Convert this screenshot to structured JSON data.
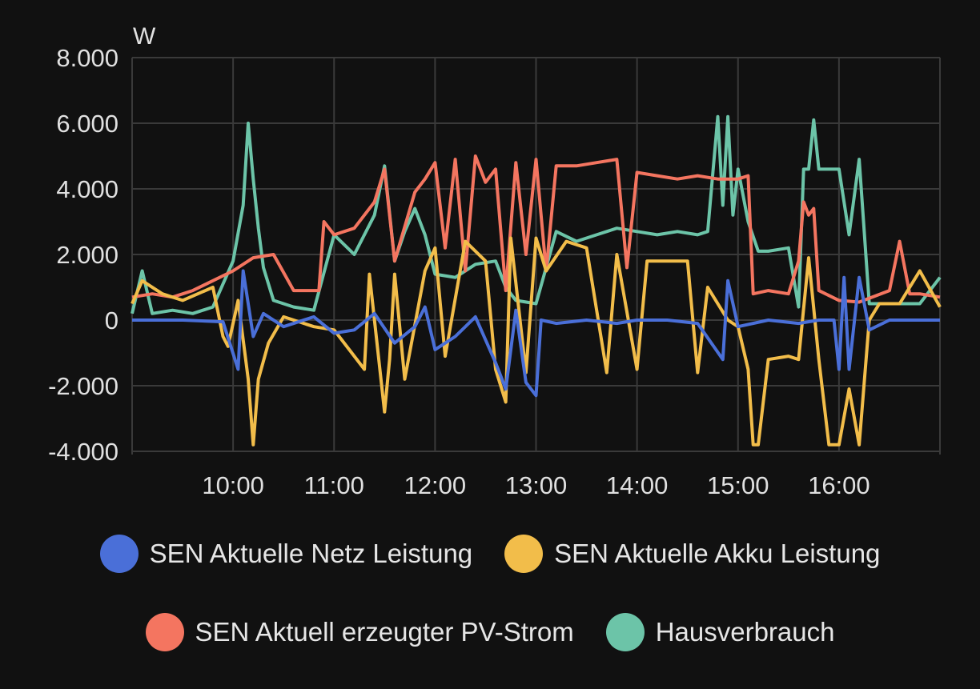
{
  "colors": {
    "background": "#111111",
    "grid": "#3a3a3a",
    "netz": "#4a6fd8",
    "akku": "#f2bd4a",
    "pv": "#f47560",
    "haus": "#6cc4a8"
  },
  "chart_data": {
    "type": "line",
    "title": "",
    "unit": "W",
    "xlabel": "",
    "ylabel": "W",
    "xlim": [
      9.0,
      17.0
    ],
    "ylim": [
      -4000,
      8000
    ],
    "x_ticks": [
      10,
      11,
      12,
      13,
      14,
      15,
      16
    ],
    "x_tick_labels": [
      "10:00",
      "11:00",
      "12:00",
      "13:00",
      "14:00",
      "15:00",
      "16:00"
    ],
    "y_ticks": [
      -4000,
      -2000,
      0,
      2000,
      4000,
      6000,
      8000
    ],
    "y_tick_labels": [
      "-4.000",
      "-2.000",
      "0",
      "2.000",
      "4.000",
      "6.000",
      "8.000"
    ],
    "grid": true,
    "legend_position": "bottom",
    "series": [
      {
        "name": "SEN Aktuelle Netz Leistung",
        "color": "#4a6fd8",
        "x": [
          9.0,
          9.5,
          9.9,
          10.05,
          10.1,
          10.2,
          10.3,
          10.5,
          10.8,
          11.0,
          11.2,
          11.4,
          11.6,
          11.8,
          11.9,
          12.0,
          12.2,
          12.4,
          12.6,
          12.7,
          12.8,
          12.9,
          13.0,
          13.05,
          13.2,
          13.5,
          13.8,
          14.0,
          14.3,
          14.6,
          14.85,
          14.9,
          15.0,
          15.3,
          15.6,
          15.8,
          15.95,
          16.0,
          16.05,
          16.1,
          16.2,
          16.3,
          16.5,
          16.8,
          17.0
        ],
        "y": [
          0,
          0,
          -50,
          -1500,
          1500,
          -500,
          200,
          -200,
          100,
          -400,
          -300,
          200,
          -700,
          -200,
          400,
          -900,
          -500,
          100,
          -1300,
          -2100,
          300,
          -1900,
          -2300,
          0,
          -100,
          0,
          -100,
          0,
          0,
          -100,
          -1200,
          1200,
          -200,
          0,
          -100,
          0,
          0,
          -1500,
          1300,
          -1500,
          1300,
          -300,
          0,
          0,
          0
        ]
      },
      {
        "name": "SEN Aktuelle Akku Leistung",
        "color": "#f2bd4a",
        "x": [
          9.0,
          9.1,
          9.3,
          9.5,
          9.8,
          9.9,
          9.95,
          10.05,
          10.15,
          10.2,
          10.25,
          10.35,
          10.5,
          10.8,
          11.0,
          11.3,
          11.35,
          11.5,
          11.55,
          11.6,
          11.7,
          11.9,
          12.0,
          12.1,
          12.3,
          12.5,
          12.6,
          12.7,
          12.75,
          12.9,
          13.0,
          13.1,
          13.3,
          13.5,
          13.7,
          13.8,
          14.0,
          14.1,
          14.2,
          14.5,
          14.6,
          14.7,
          14.9,
          15.0,
          15.1,
          15.15,
          15.2,
          15.3,
          15.5,
          15.6,
          15.7,
          15.8,
          15.9,
          16.0,
          16.1,
          16.2,
          16.3,
          16.4,
          16.6,
          16.8,
          17.0
        ],
        "y": [
          500,
          1200,
          800,
          600,
          1000,
          -500,
          -800,
          600,
          -1800,
          -3800,
          -1800,
          -700,
          100,
          -200,
          -300,
          -1500,
          1400,
          -2800,
          -1200,
          1400,
          -1800,
          1500,
          2200,
          -1100,
          2400,
          1800,
          -1500,
          -2500,
          2500,
          -1600,
          2500,
          1500,
          2400,
          2200,
          -1600,
          2000,
          -1500,
          1800,
          1800,
          1800,
          -1600,
          1000,
          0,
          -200,
          -1500,
          -3800,
          -3800,
          -1200,
          -1100,
          -1200,
          1900,
          -1200,
          -3800,
          -3800,
          -2100,
          -3800,
          0,
          500,
          500,
          1500,
          400
        ]
      },
      {
        "name": "SEN Aktuell erzeugter PV-Strom",
        "color": "#f47560",
        "x": [
          9.0,
          9.2,
          9.4,
          9.6,
          9.8,
          10.0,
          10.2,
          10.4,
          10.6,
          10.85,
          10.9,
          11.0,
          11.2,
          11.4,
          11.5,
          11.6,
          11.8,
          11.9,
          12.0,
          12.1,
          12.2,
          12.3,
          12.4,
          12.5,
          12.6,
          12.7,
          12.8,
          12.9,
          13.0,
          13.1,
          13.2,
          13.4,
          13.6,
          13.8,
          13.9,
          14.0,
          14.2,
          14.4,
          14.6,
          14.8,
          15.0,
          15.1,
          15.15,
          15.3,
          15.5,
          15.6,
          15.65,
          15.7,
          15.75,
          15.8,
          16.0,
          16.2,
          16.5,
          16.6,
          16.7,
          16.8,
          17.0
        ],
        "y": [
          700,
          800,
          700,
          900,
          1200,
          1500,
          1900,
          2000,
          900,
          900,
          3000,
          2600,
          2800,
          3600,
          4600,
          1800,
          3900,
          4300,
          4800,
          2200,
          4900,
          1500,
          5000,
          4200,
          4600,
          900,
          4800,
          2000,
          4900,
          1500,
          4700,
          4700,
          4800,
          4900,
          1600,
          4500,
          4400,
          4300,
          4400,
          4300,
          4300,
          4400,
          800,
          900,
          800,
          1800,
          3600,
          3200,
          3400,
          900,
          600,
          550,
          900,
          2400,
          800,
          800,
          700
        ]
      },
      {
        "name": "Hausverbrauch",
        "color": "#6cc4a8",
        "x": [
          9.0,
          9.1,
          9.2,
          9.4,
          9.6,
          9.8,
          10.0,
          10.1,
          10.15,
          10.2,
          10.25,
          10.3,
          10.4,
          10.5,
          10.6,
          10.8,
          11.0,
          11.2,
          11.4,
          11.5,
          11.6,
          11.7,
          11.8,
          11.9,
          12.0,
          12.2,
          12.4,
          12.6,
          12.7,
          12.8,
          13.0,
          13.2,
          13.4,
          13.6,
          13.8,
          14.0,
          14.2,
          14.4,
          14.6,
          14.7,
          14.8,
          14.85,
          14.9,
          14.95,
          15.0,
          15.1,
          15.2,
          15.3,
          15.5,
          15.6,
          15.65,
          15.7,
          15.75,
          15.8,
          15.85,
          16.0,
          16.1,
          16.2,
          16.3,
          16.5,
          16.8,
          17.0
        ],
        "y": [
          200,
          1500,
          200,
          300,
          200,
          400,
          1800,
          3500,
          6000,
          4300,
          2800,
          1600,
          600,
          500,
          400,
          300,
          2600,
          2000,
          3200,
          4700,
          1800,
          2700,
          3400,
          2600,
          1400,
          1300,
          1700,
          1800,
          1000,
          600,
          500,
          2700,
          2400,
          2600,
          2800,
          2700,
          2600,
          2700,
          2600,
          2700,
          6200,
          3500,
          6200,
          3200,
          4600,
          3000,
          2100,
          2100,
          2200,
          400,
          4600,
          4600,
          6100,
          4600,
          4600,
          4600,
          2600,
          4900,
          500,
          500,
          500,
          1300
        ]
      }
    ]
  },
  "legend": {
    "row1": [
      "SEN Aktuelle Netz Leistung",
      "SEN Aktuelle Akku Leistung"
    ],
    "row2": [
      "SEN Aktuell erzeugter PV-Strom",
      "Hausverbrauch"
    ]
  }
}
